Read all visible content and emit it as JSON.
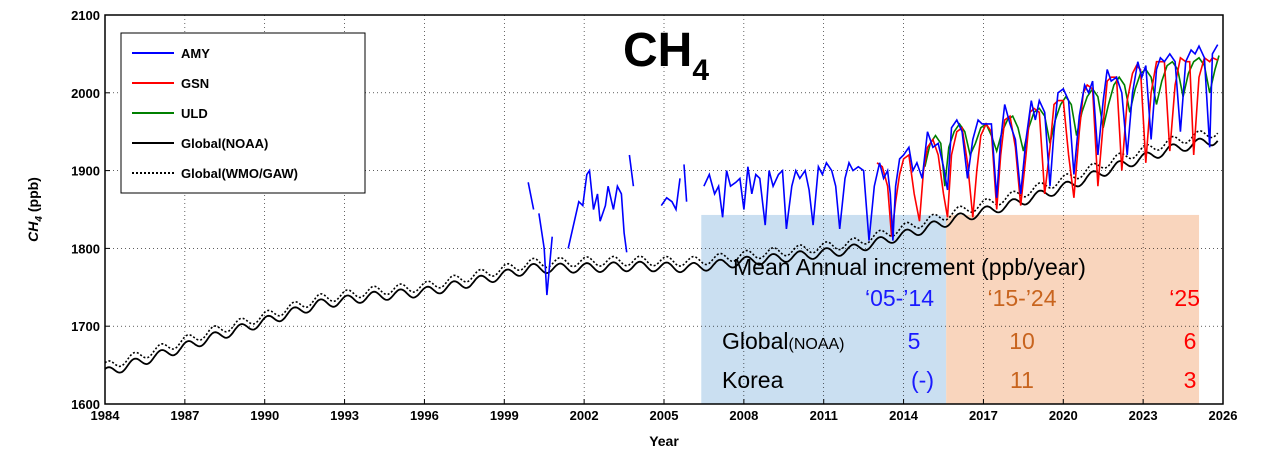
{
  "chart_data": {
    "type": "line",
    "title": "CH",
    "title_subscript": "4",
    "xlabel": "Year",
    "ylabel": "CH",
    "ylabel_subscript": "4",
    "ylabel_unit": " (ppb)",
    "xlim": [
      1984,
      2026
    ],
    "ylim": [
      1600,
      2100
    ],
    "xticks": [
      "1984",
      "1987",
      "1990",
      "1993",
      "1996",
      "1999",
      "2002",
      "2005",
      "2008",
      "2011",
      "2014",
      "2017",
      "2020",
      "2023",
      "2026"
    ],
    "yticks": [
      "1600",
      "1700",
      "1800",
      "1900",
      "2000",
      "2100"
    ],
    "grid": true,
    "legend_position": "top-left",
    "series": [
      {
        "name": "AMY",
        "color": "#0000ff",
        "style": "solid",
        "segments": [
          {
            "x": [
              1999.9,
              2000.1
            ],
            "y": [
              1885,
              1850
            ]
          },
          {
            "x": [
              2000.3,
              2000.5,
              2000.6,
              2000.8
            ],
            "y": [
              1845,
              1800,
              1740,
              1815
            ]
          },
          {
            "x": [
              2001.4,
              2001.6,
              2001.8,
              2001.95,
              2002.1,
              2002.2,
              2002.35,
              2002.5,
              2002.6,
              2002.8,
              2002.9,
              2003.1,
              2003.25,
              2003.4,
              2003.5,
              2003.6
            ],
            "y": [
              1800,
              1830,
              1860,
              1855,
              1895,
              1900,
              1850,
              1870,
              1835,
              1855,
              1880,
              1850,
              1880,
              1870,
              1820,
              1795
            ]
          },
          {
            "x": [
              2003.7,
              2003.85
            ],
            "y": [
              1920,
              1880
            ]
          },
          {
            "x": [
              2004.9,
              2005.1,
              2005.3,
              2005.45,
              2005.6
            ],
            "y": [
              1855,
              1865,
              1860,
              1850,
              1890
            ]
          },
          {
            "x": [
              2005.75,
              2005.85
            ],
            "y": [
              1908,
              1860
            ]
          },
          {
            "x": [
              2006.5,
              2006.7,
              2006.9,
              2007.05,
              2007.2,
              2007.35,
              2007.5,
              2007.7,
              2007.85,
              2008.0,
              2008.15,
              2008.3,
              2008.45,
              2008.6,
              2008.8,
              2008.95,
              2009.1,
              2009.3,
              2009.45,
              2009.6,
              2009.8,
              2009.95,
              2010.1,
              2010.3,
              2010.45,
              2010.6,
              2010.8,
              2010.95,
              2011.1,
              2011.3,
              2011.45,
              2011.6,
              2011.8,
              2011.95,
              2012.1,
              2012.3,
              2012.5,
              2012.7,
              2012.9,
              2013.1,
              2013.25,
              2013.4,
              2013.5,
              2013.6,
              2013.7,
              2013.85,
              2014.0,
              2014.2,
              2014.35,
              2014.5,
              2014.7,
              2014.9,
              2015.1,
              2015.3,
              2015.5,
              2015.65,
              2015.8,
              2016.0,
              2016.2,
              2016.4,
              2016.6,
              2016.8,
              2016.95,
              2017.1,
              2017.3,
              2017.5,
              2017.65,
              2017.8,
              2018.0,
              2018.2,
              2018.4,
              2018.6,
              2018.8,
              2018.95,
              2019.1,
              2019.3,
              2019.5,
              2019.65,
              2019.8,
              2020.0,
              2020.2,
              2020.4,
              2020.6,
              2020.8,
              2020.95,
              2021.1,
              2021.3,
              2021.5,
              2021.65,
              2021.8,
              2022.0,
              2022.2,
              2022.4,
              2022.6,
              2022.8,
              2022.95,
              2023.1,
              2023.3,
              2023.5,
              2023.65,
              2023.8,
              2024.0,
              2024.2,
              2024.4,
              2024.6,
              2024.8,
              2024.95,
              2025.1,
              2025.3,
              2025.5,
              2025.6,
              2025.8
            ],
            "y": [
              1880,
              1895,
              1870,
              1880,
              1840,
              1900,
              1880,
              1885,
              1890,
              1850,
              1905,
              1870,
              1895,
              1890,
              1830,
              1900,
              1880,
              1895,
              1900,
              1825,
              1880,
              1900,
              1890,
              1900,
              1875,
              1830,
              1905,
              1895,
              1910,
              1900,
              1880,
              1825,
              1890,
              1910,
              1900,
              1905,
              1900,
              1810,
              1880,
              1910,
              1890,
              1900,
              1870,
              1810,
              1880,
              1915,
              1920,
              1930,
              1900,
              1910,
              1890,
              1950,
              1930,
              1935,
              1905,
              1875,
              1955,
              1965,
              1950,
              1890,
              1940,
              1965,
              1960,
              1960,
              1960,
              1865,
              1940,
              1985,
              1960,
              1940,
              1870,
              1940,
              1990,
              1965,
              1990,
              1975,
              1880,
              1950,
              2000,
              2005,
              1990,
              1895,
              1970,
              2010,
              2000,
              2015,
              1920,
              1990,
              2030,
              2015,
              2020,
              2000,
              1920,
              2000,
              2040,
              2020,
              2035,
              1940,
              2030,
              2045,
              2040,
              2050,
              2040,
              1950,
              2040,
              2055,
              2050,
              2060,
              2045,
              1930,
              2050,
              2062
            ]
          }
        ]
      },
      {
        "name": "GSN",
        "color": "#ff0000",
        "style": "solid",
        "segments": [
          {
            "x": [
              2013.0,
              2013.2,
              2013.4,
              2013.55,
              2013.7,
              2013.85,
              2014.0,
              2014.2,
              2014.4,
              2014.6,
              2014.75,
              2014.9,
              2015.1,
              2015.3,
              2015.5,
              2015.65,
              2015.8,
              2016.0,
              2016.2,
              2016.4,
              2016.6,
              2016.75,
              2016.9,
              2017.1,
              2017.3,
              2017.5,
              2017.65,
              2017.8,
              2018.0,
              2018.2,
              2018.4,
              2018.6,
              2018.75,
              2018.9,
              2019.1,
              2019.3,
              2019.5,
              2019.65,
              2019.8,
              2020.0,
              2020.2,
              2020.4,
              2020.6,
              2020.75,
              2020.9,
              2021.1,
              2021.3,
              2021.5,
              2021.65,
              2021.8,
              2022.0,
              2022.2,
              2022.4,
              2022.6,
              2022.75,
              2022.9,
              2023.1,
              2023.3,
              2023.5,
              2023.65,
              2023.8,
              2024.0,
              2024.2,
              2024.4,
              2024.6,
              2024.75,
              2024.9,
              2025.1,
              2025.3,
              2025.5,
              2025.6,
              2025.8
            ],
            "y": [
              1910,
              1905,
              1880,
              1815,
              1860,
              1895,
              1915,
              1920,
              1870,
              1835,
              1900,
              1930,
              1940,
              1920,
              1870,
              1840,
              1920,
              1950,
              1955,
              1910,
              1840,
              1900,
              1945,
              1960,
              1950,
              1850,
              1920,
              1965,
              1970,
              1930,
              1855,
              1920,
              1975,
              1980,
              1975,
              1870,
              1930,
              1985,
              1990,
              1990,
              1920,
              1865,
              1950,
              2000,
              2010,
              2005,
              1880,
              1960,
              2015,
              2020,
              2020,
              1900,
              1990,
              2025,
              2035,
              2030,
              1910,
              2000,
              2040,
              2040,
              2040,
              1925,
              2010,
              2045,
              2040,
              2040,
              1920,
              2020,
              2045,
              2040,
              2045,
              2042
            ]
          }
        ]
      },
      {
        "name": "ULD",
        "color": "#008000",
        "style": "solid",
        "segments": [
          {
            "x": [
              2014.8,
              2015.0,
              2015.2,
              2015.4,
              2015.55,
              2015.7,
              2015.9,
              2016.1,
              2016.3,
              2016.5,
              2016.7,
              2016.9,
              2017.1,
              2017.3,
              2017.5,
              2017.7,
              2017.9,
              2018.1,
              2018.3,
              2018.5,
              2018.7,
              2018.9,
              2019.1,
              2019.3,
              2019.5,
              2019.7,
              2019.9,
              2020.1,
              2020.3,
              2020.5,
              2020.7,
              2020.9,
              2021.1,
              2021.3,
              2021.5,
              2021.7,
              2021.9,
              2022.1,
              2022.3,
              2022.5,
              2022.7,
              2022.9,
              2023.1,
              2023.3,
              2023.5,
              2023.7,
              2023.9,
              2024.1,
              2024.3,
              2024.5,
              2024.7,
              2024.9,
              2025.1,
              2025.3,
              2025.5,
              2025.7,
              2025.85
            ],
            "y": [
              1905,
              1935,
              1945,
              1935,
              1880,
              1930,
              1950,
              1960,
              1950,
              1920,
              1935,
              1955,
              1960,
              1945,
              1925,
              1950,
              1965,
              1970,
              1955,
              1925,
              1955,
              1975,
              1980,
              1970,
              1935,
              1965,
              1985,
              1995,
              1985,
              1945,
              1975,
              1995,
              2005,
              1995,
              1955,
              1985,
              2010,
              2020,
              2010,
              1975,
              2005,
              2025,
              2030,
              2020,
              1985,
              2015,
              2035,
              2040,
              2030,
              1995,
              2025,
              2040,
              2045,
              2035,
              2000,
              2030,
              2048
            ]
          }
        ]
      },
      {
        "name": "Global(NOAA)",
        "color": "#000000",
        "style": "solid",
        "trend": [
          [
            1984,
            1640
          ],
          [
            1986,
            1662
          ],
          [
            1988,
            1685
          ],
          [
            1990,
            1706
          ],
          [
            1992,
            1728
          ],
          [
            1994,
            1738
          ],
          [
            1996,
            1744
          ],
          [
            1998,
            1758
          ],
          [
            2000,
            1774
          ],
          [
            2002,
            1775
          ],
          [
            2004,
            1777
          ],
          [
            2006,
            1775
          ],
          [
            2008,
            1783
          ],
          [
            2010,
            1790
          ],
          [
            2012,
            1798
          ],
          [
            2014,
            1817
          ],
          [
            2016,
            1838
          ],
          [
            2018,
            1856
          ],
          [
            2020,
            1878
          ],
          [
            2022,
            1905
          ],
          [
            2024,
            1927
          ],
          [
            2025.8,
            1940
          ]
        ]
      },
      {
        "name": "Global(WMO/GAW)",
        "color": "#000000",
        "style": "dotted",
        "trend": [
          [
            1984,
            1648
          ],
          [
            1986,
            1670
          ],
          [
            1988,
            1693
          ],
          [
            1990,
            1713
          ],
          [
            1992,
            1735
          ],
          [
            1994,
            1745
          ],
          [
            1996,
            1751
          ],
          [
            1998,
            1766
          ],
          [
            2000,
            1781
          ],
          [
            2002,
            1783
          ],
          [
            2004,
            1784
          ],
          [
            2006,
            1783
          ],
          [
            2008,
            1791
          ],
          [
            2010,
            1798
          ],
          [
            2012,
            1806
          ],
          [
            2014,
            1826
          ],
          [
            2016,
            1847
          ],
          [
            2018,
            1866
          ],
          [
            2020,
            1888
          ],
          [
            2022,
            1915
          ],
          [
            2024,
            1937
          ],
          [
            2025.8,
            1950
          ]
        ]
      }
    ],
    "annotation": {
      "heading": "Mean Annual increment (ppb/year)",
      "periods": [
        "‘05-’14",
        "‘15-’24",
        "‘25"
      ],
      "period_colors": [
        "#1a1aff",
        "#c8641e",
        "#ff0000"
      ],
      "rows": [
        {
          "label": "Global",
          "label_suffix": "(NOAA)",
          "values": [
            "5",
            "10",
            "6"
          ]
        },
        {
          "label": "Korea",
          "label_suffix": "",
          "values": [
            "(-)",
            "11",
            "3"
          ]
        }
      ],
      "box_colors": [
        "#bdd7ee",
        "#f8cbad"
      ],
      "shade_ranges": [
        [
          2006.4,
          2015.6
        ],
        [
          2015.6,
          2025.1
        ]
      ],
      "shade_ylim": [
        1600,
        1843
      ]
    }
  }
}
